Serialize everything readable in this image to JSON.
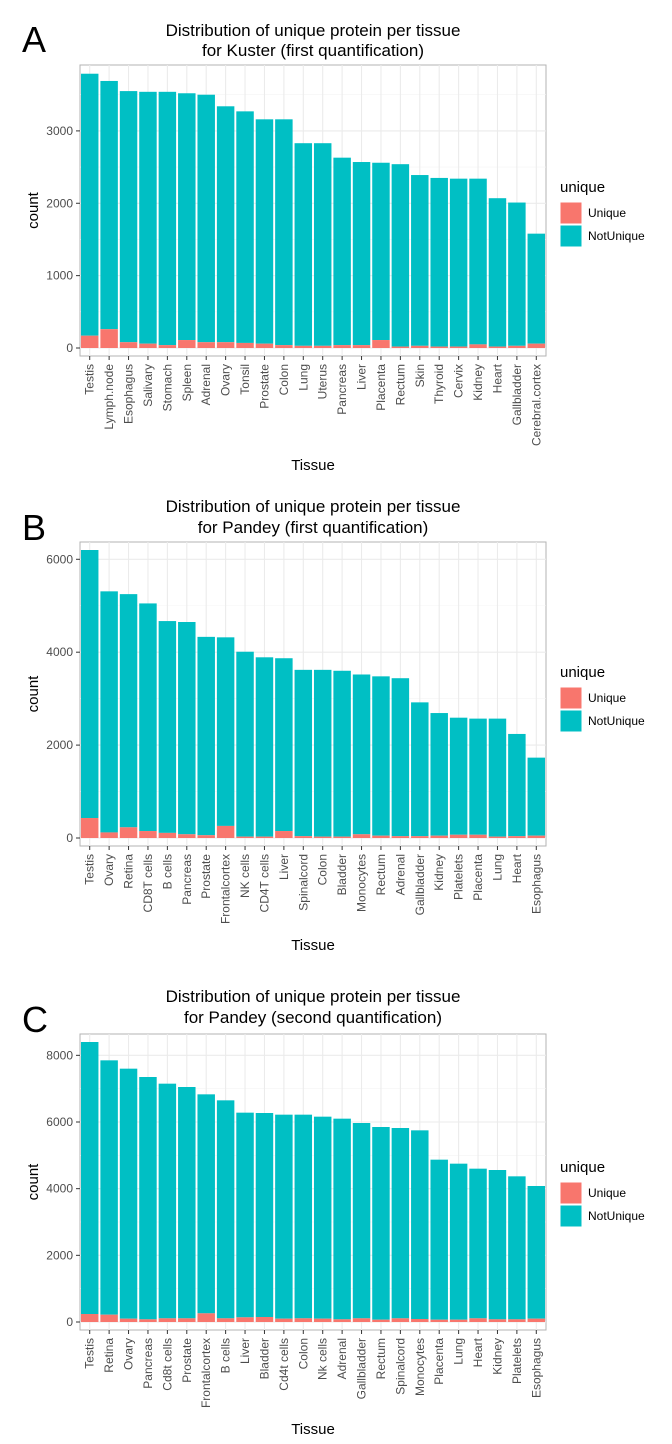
{
  "colors": {
    "unique": "#F8766D",
    "notunique": "#00BFC4",
    "panel": "#ffffff",
    "grid_major": "#ebebeb",
    "grid_minor": "#f4f4f4",
    "border": "#b3b3b3"
  },
  "chart_data": [
    {
      "panel": "A",
      "type": "bar",
      "stacked": true,
      "title": [
        "Distribution of unique protein per tissue",
        "for Kuster (first quantification)"
      ],
      "xlabel": "Tissue",
      "ylabel": "count",
      "ylim": [
        0,
        3800
      ],
      "yticks": [
        0,
        1000,
        2000,
        3000
      ],
      "legend": {
        "title": "unique",
        "position": "right",
        "entries": [
          "Unique",
          "NotUnique"
        ]
      },
      "categories": [
        "Testis",
        "Lymph.node",
        "Esophagus",
        "Salivary",
        "Stomach",
        "Spleen",
        "Adrenal",
        "Ovary",
        "Tonsil",
        "Prostate",
        "Colon",
        "Lung",
        "Uterus",
        "Pancreas",
        "Liver",
        "Placenta",
        "Rectum",
        "Skin",
        "Thyroid",
        "Cervix",
        "Kidney",
        "Heart",
        "Gallbladder",
        "Cerebral.cortex"
      ],
      "totals": [
        3790,
        3690,
        3550,
        3540,
        3540,
        3520,
        3500,
        3340,
        3270,
        3160,
        3160,
        2830,
        2830,
        2630,
        2570,
        2560,
        2540,
        2390,
        2350,
        2340,
        2340,
        2070,
        2010,
        1580
      ],
      "series": [
        {
          "name": "Unique",
          "values": [
            170,
            260,
            80,
            60,
            40,
            110,
            80,
            80,
            70,
            60,
            40,
            30,
            30,
            40,
            40,
            110,
            20,
            30,
            20,
            20,
            50,
            20,
            30,
            60
          ]
        }
      ]
    },
    {
      "panel": "B",
      "type": "bar",
      "stacked": true,
      "title": [
        "Distribution of unique protein per tissue",
        "for Pandey (first quantification)"
      ],
      "xlabel": "Tissue",
      "ylabel": "count",
      "ylim": [
        0,
        6200
      ],
      "yticks": [
        0,
        2000,
        4000,
        6000
      ],
      "legend": {
        "title": "unique",
        "position": "right",
        "entries": [
          "Unique",
          "NotUnique"
        ]
      },
      "categories": [
        "Testis",
        "Ovary",
        "Retina",
        "CD8T cells",
        "B cells",
        "Pancreas",
        "Prostate",
        "Frontalcortex",
        "NK cells",
        "CD4T cells",
        "Liver",
        "Spinalcord",
        "Colon",
        "Bladder",
        "Monocytes",
        "Rectum",
        "Adrenal",
        "Gallbladder",
        "Kidney",
        "Platelets",
        "Placenta",
        "Lung",
        "Heart",
        "Esophagus"
      ],
      "totals": [
        6200,
        5310,
        5250,
        5050,
        4670,
        4650,
        4330,
        4320,
        4010,
        3890,
        3870,
        3620,
        3620,
        3600,
        3520,
        3480,
        3440,
        2920,
        2690,
        2590,
        2570,
        2570,
        2240,
        1730
      ],
      "series": [
        {
          "name": "Unique",
          "values": [
            430,
            120,
            230,
            150,
            110,
            80,
            60,
            260,
            30,
            30,
            150,
            40,
            30,
            30,
            80,
            50,
            40,
            40,
            50,
            70,
            70,
            30,
            40,
            50
          ]
        }
      ]
    },
    {
      "panel": "C",
      "type": "bar",
      "stacked": true,
      "title": [
        "Distribution of unique protein per tissue",
        "for Pandey (second quantification)"
      ],
      "xlabel": "Tissue",
      "ylabel": "count",
      "ylim": [
        0,
        8400
      ],
      "yticks": [
        0,
        2000,
        4000,
        6000,
        8000
      ],
      "legend": {
        "title": "unique",
        "position": "right",
        "entries": [
          "Unique",
          "NotUnique"
        ]
      },
      "categories": [
        "Testis",
        "Retina",
        "Ovary",
        "Pancreas",
        "Cd8t cells",
        "Prostate",
        "Frontalcortex",
        "B cells",
        "Liver",
        "Bladder",
        "Cd4t cells",
        "Colon",
        "Nk cells",
        "Adrenal",
        "Gallbladder",
        "Rectum",
        "Spinalcord",
        "Monocytes",
        "Placenta",
        "Lung",
        "Heart",
        "Kidney",
        "Platelets",
        "Esophagus"
      ],
      "totals": [
        8400,
        7850,
        7600,
        7350,
        7150,
        7050,
        6830,
        6650,
        6280,
        6270,
        6220,
        6220,
        6160,
        6100,
        5970,
        5850,
        5820,
        5750,
        4870,
        4750,
        4600,
        4560,
        4370,
        4080
      ],
      "series": [
        {
          "name": "Unique",
          "values": [
            240,
            220,
            100,
            80,
            110,
            110,
            260,
            110,
            140,
            150,
            100,
            110,
            100,
            80,
            110,
            70,
            110,
            90,
            70,
            70,
            110,
            80,
            80,
            100
          ]
        }
      ]
    }
  ]
}
